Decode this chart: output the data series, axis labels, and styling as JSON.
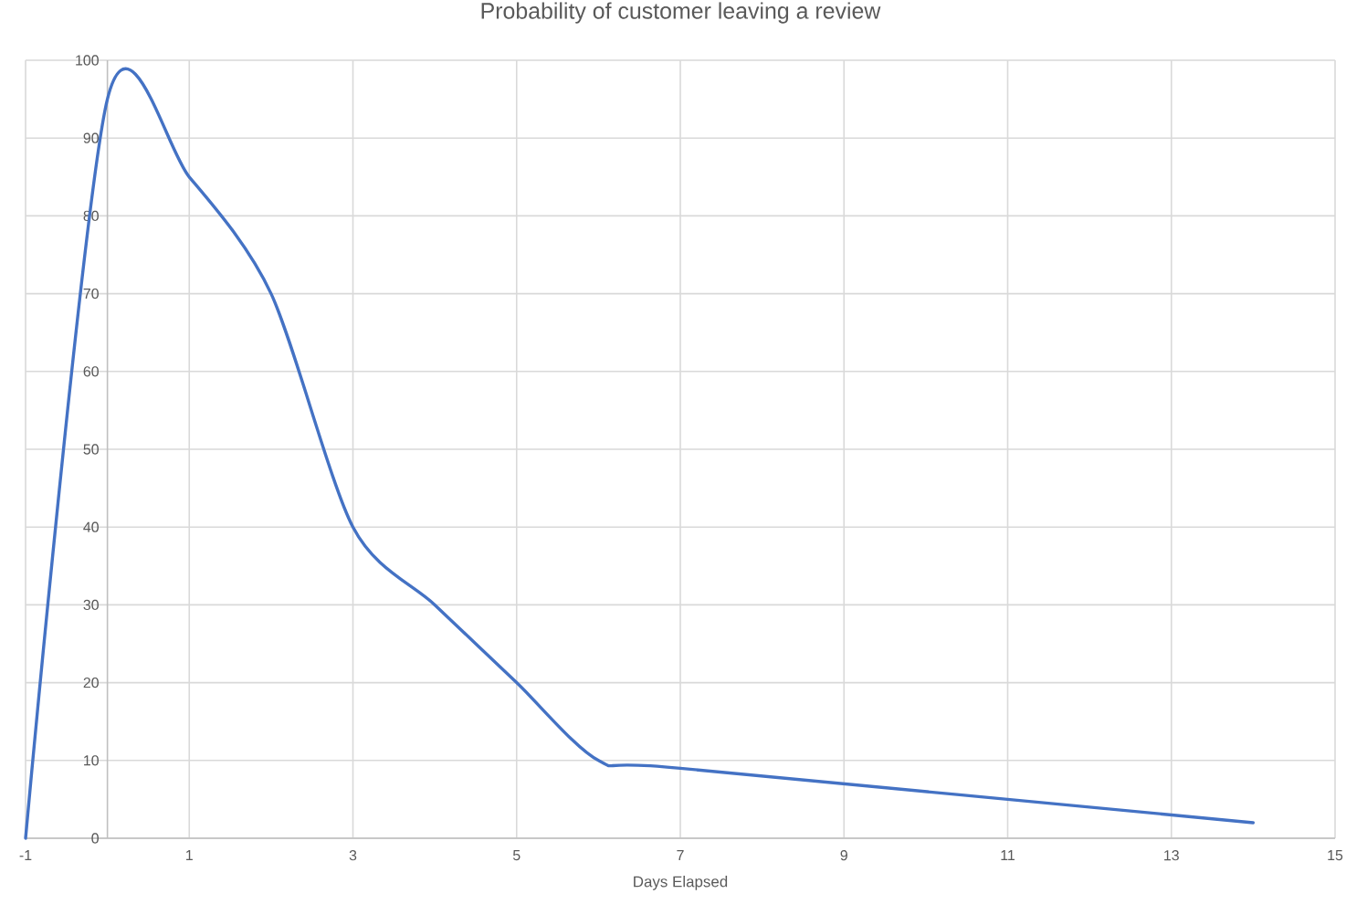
{
  "chart_data": {
    "type": "line",
    "title": "Probability of customer leaving a review",
    "xlabel": "Days Elapsed",
    "x": [
      -1,
      0,
      1,
      2,
      3,
      4,
      5,
      6,
      7,
      14
    ],
    "values": [
      0,
      95,
      85,
      70,
      40,
      30,
      20,
      10,
      9,
      2
    ],
    "color": "#4472c4",
    "marker": "none",
    "line_style": "solid",
    "grid": true,
    "xlim": [
      -1,
      15
    ],
    "ylim": [
      0,
      100
    ],
    "xticks": [
      -1,
      1,
      3,
      5,
      7,
      9,
      11,
      13,
      15
    ],
    "yticks": [
      0,
      10,
      20,
      30,
      40,
      50,
      60,
      70,
      80,
      90,
      100
    ]
  }
}
